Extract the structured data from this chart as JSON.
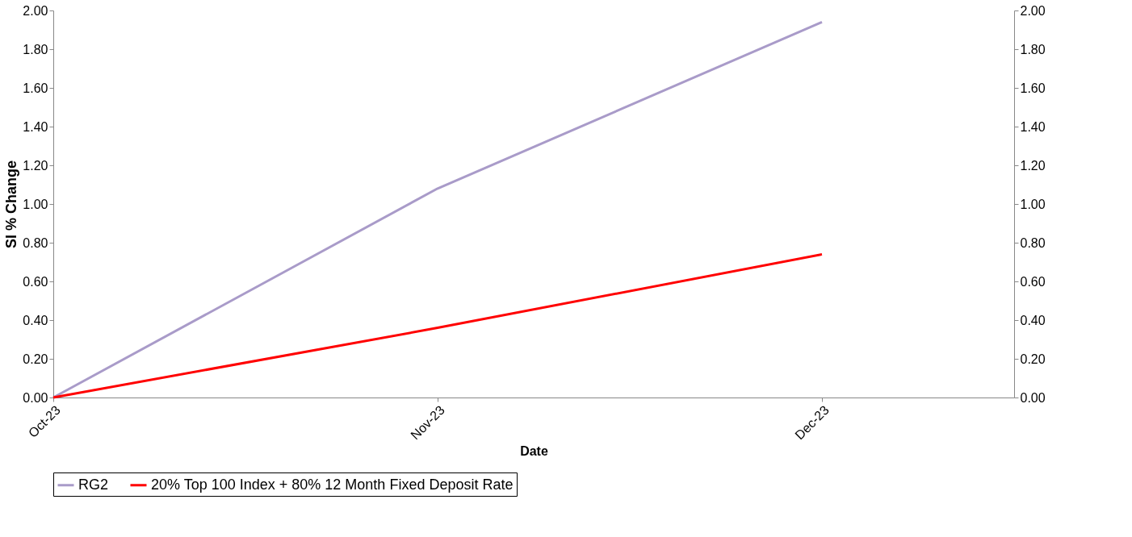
{
  "chart_data": {
    "type": "line",
    "xlabel": "Date",
    "ylabel": "SI % Change",
    "categories": [
      "Oct-23",
      "Nov-23",
      "Dec-23"
    ],
    "series": [
      {
        "name": "RG2",
        "color": "#a99bc9",
        "values": [
          0,
          1.08,
          1.94
        ]
      },
      {
        "name": "20% Top 100 Index + 80% 12 Month Fixed Deposit Rate",
        "color": "#ff0000",
        "values": [
          0,
          0.36,
          0.74
        ]
      }
    ],
    "ylim": [
      0,
      2
    ],
    "yticks": [
      {
        "value": 0,
        "label": "0.00"
      },
      {
        "value": 0.2,
        "label": "0.20"
      },
      {
        "value": 0.4,
        "label": "0.40"
      },
      {
        "value": 0.6,
        "label": "0.60"
      },
      {
        "value": 0.8,
        "label": "0.80"
      },
      {
        "value": 1,
        "label": "1.00"
      },
      {
        "value": 1.2,
        "label": "1.20"
      },
      {
        "value": 1.4,
        "label": "1.40"
      },
      {
        "value": 1.6,
        "label": "1.60"
      },
      {
        "value": 1.8,
        "label": "1.80"
      },
      {
        "value": 2,
        "label": "2.00"
      }
    ],
    "y2lim": [
      0,
      2
    ],
    "y2ticks": [
      {
        "value": 0,
        "label": "0.00"
      },
      {
        "value": 0.2,
        "label": "0.20"
      },
      {
        "value": 0.4,
        "label": "0.40"
      },
      {
        "value": 0.6,
        "label": "0.60"
      },
      {
        "value": 0.8,
        "label": "0.80"
      },
      {
        "value": 1,
        "label": "1.00"
      },
      {
        "value": 1.2,
        "label": "1.20"
      },
      {
        "value": 1.4,
        "label": "1.40"
      },
      {
        "value": 1.6,
        "label": "1.60"
      },
      {
        "value": 1.8,
        "label": "1.80"
      },
      {
        "value": 2,
        "label": "2.00"
      }
    ],
    "grid": false,
    "legend": "bottom",
    "marker": "none",
    "line_style": "solid"
  }
}
